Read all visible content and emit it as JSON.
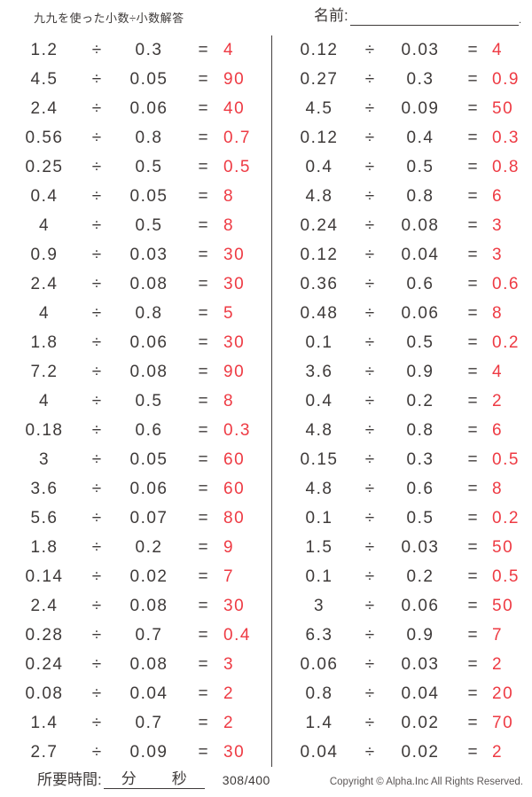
{
  "header": {
    "title": "九九を使った小数÷小数解答",
    "name_label": "名前:",
    "name_line_end": "."
  },
  "symbols": {
    "divide": "÷",
    "equals": "="
  },
  "problems": {
    "left": [
      {
        "dividend": "1.2",
        "divisor": "0.3",
        "answer": "4"
      },
      {
        "dividend": "4.5",
        "divisor": "0.05",
        "answer": "90"
      },
      {
        "dividend": "2.4",
        "divisor": "0.06",
        "answer": "40"
      },
      {
        "dividend": "0.56",
        "divisor": "0.8",
        "answer": "0.7"
      },
      {
        "dividend": "0.25",
        "divisor": "0.5",
        "answer": "0.5"
      },
      {
        "dividend": "0.4",
        "divisor": "0.05",
        "answer": "8"
      },
      {
        "dividend": "4",
        "divisor": "0.5",
        "answer": "8"
      },
      {
        "dividend": "0.9",
        "divisor": "0.03",
        "answer": "30"
      },
      {
        "dividend": "2.4",
        "divisor": "0.08",
        "answer": "30"
      },
      {
        "dividend": "4",
        "divisor": "0.8",
        "answer": "5"
      },
      {
        "dividend": "1.8",
        "divisor": "0.06",
        "answer": "30"
      },
      {
        "dividend": "7.2",
        "divisor": "0.08",
        "answer": "90"
      },
      {
        "dividend": "4",
        "divisor": "0.5",
        "answer": "8"
      },
      {
        "dividend": "0.18",
        "divisor": "0.6",
        "answer": "0.3"
      },
      {
        "dividend": "3",
        "divisor": "0.05",
        "answer": "60"
      },
      {
        "dividend": "3.6",
        "divisor": "0.06",
        "answer": "60"
      },
      {
        "dividend": "5.6",
        "divisor": "0.07",
        "answer": "80"
      },
      {
        "dividend": "1.8",
        "divisor": "0.2",
        "answer": "9"
      },
      {
        "dividend": "0.14",
        "divisor": "0.02",
        "answer": "7"
      },
      {
        "dividend": "2.4",
        "divisor": "0.08",
        "answer": "30"
      },
      {
        "dividend": "0.28",
        "divisor": "0.7",
        "answer": "0.4"
      },
      {
        "dividend": "0.24",
        "divisor": "0.08",
        "answer": "3"
      },
      {
        "dividend": "0.08",
        "divisor": "0.04",
        "answer": "2"
      },
      {
        "dividend": "1.4",
        "divisor": "0.7",
        "answer": "2"
      },
      {
        "dividend": "2.7",
        "divisor": "0.09",
        "answer": "30"
      }
    ],
    "right": [
      {
        "dividend": "0.12",
        "divisor": "0.03",
        "answer": "4"
      },
      {
        "dividend": "0.27",
        "divisor": "0.3",
        "answer": "0.9"
      },
      {
        "dividend": "4.5",
        "divisor": "0.09",
        "answer": "50"
      },
      {
        "dividend": "0.12",
        "divisor": "0.4",
        "answer": "0.3"
      },
      {
        "dividend": "0.4",
        "divisor": "0.5",
        "answer": "0.8"
      },
      {
        "dividend": "4.8",
        "divisor": "0.8",
        "answer": "6"
      },
      {
        "dividend": "0.24",
        "divisor": "0.08",
        "answer": "3"
      },
      {
        "dividend": "0.12",
        "divisor": "0.04",
        "answer": "3"
      },
      {
        "dividend": "0.36",
        "divisor": "0.6",
        "answer": "0.6"
      },
      {
        "dividend": "0.48",
        "divisor": "0.06",
        "answer": "8"
      },
      {
        "dividend": "0.1",
        "divisor": "0.5",
        "answer": "0.2"
      },
      {
        "dividend": "3.6",
        "divisor": "0.9",
        "answer": "4"
      },
      {
        "dividend": "0.4",
        "divisor": "0.2",
        "answer": "2"
      },
      {
        "dividend": "4.8",
        "divisor": "0.8",
        "answer": "6"
      },
      {
        "dividend": "0.15",
        "divisor": "0.3",
        "answer": "0.5"
      },
      {
        "dividend": "4.8",
        "divisor": "0.6",
        "answer": "8"
      },
      {
        "dividend": "0.1",
        "divisor": "0.5",
        "answer": "0.2"
      },
      {
        "dividend": "1.5",
        "divisor": "0.03",
        "answer": "50"
      },
      {
        "dividend": "0.1",
        "divisor": "0.2",
        "answer": "0.5"
      },
      {
        "dividend": "3",
        "divisor": "0.06",
        "answer": "50"
      },
      {
        "dividend": "6.3",
        "divisor": "0.9",
        "answer": "7"
      },
      {
        "dividend": "0.06",
        "divisor": "0.03",
        "answer": "2"
      },
      {
        "dividend": "0.8",
        "divisor": "0.04",
        "answer": "20"
      },
      {
        "dividend": "1.4",
        "divisor": "0.02",
        "answer": "70"
      },
      {
        "dividend": "0.04",
        "divisor": "0.02",
        "answer": "2"
      }
    ]
  },
  "footer": {
    "time_label": "所要時間:",
    "minutes_label": "分",
    "seconds_label": "秒",
    "page_number": "308/400",
    "copyright": "Copyright © Alpha.Inc All Rights Reserved."
  },
  "colors": {
    "answer_red": "#ee3a43",
    "text_dark": "#3e3a39",
    "divider": "#454040"
  }
}
